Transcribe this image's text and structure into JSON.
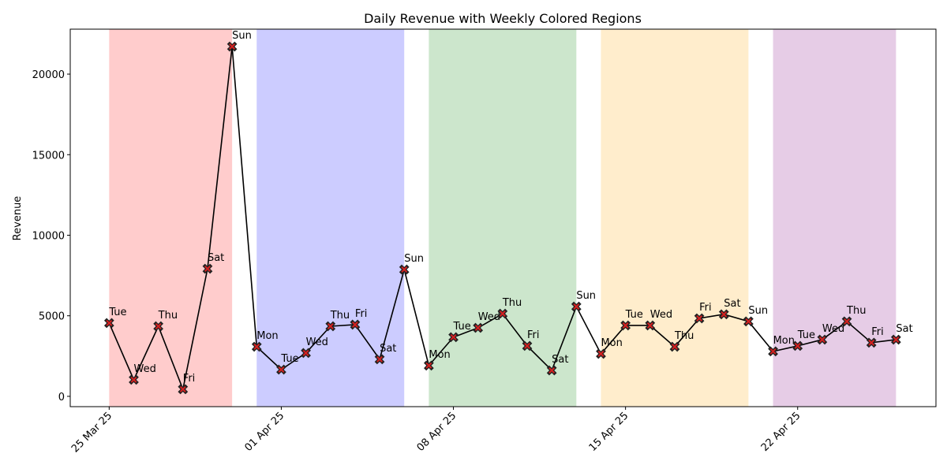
{
  "chart_data": {
    "type": "line",
    "title": "Daily Revenue with Weekly Colored Regions",
    "y_label": "Revenue",
    "x": [
      "2025-03-25",
      "2025-03-26",
      "2025-03-27",
      "2025-03-28",
      "2025-03-29",
      "2025-03-30",
      "2025-03-31",
      "2025-04-01",
      "2025-04-02",
      "2025-04-03",
      "2025-04-04",
      "2025-04-05",
      "2025-04-06",
      "2025-04-07",
      "2025-04-08",
      "2025-04-09",
      "2025-04-10",
      "2025-04-11",
      "2025-04-12",
      "2025-04-13",
      "2025-04-14",
      "2025-04-15",
      "2025-04-16",
      "2025-04-17",
      "2025-04-18",
      "2025-04-19",
      "2025-04-20",
      "2025-04-21",
      "2025-04-22",
      "2025-04-23",
      "2025-04-24",
      "2025-04-25",
      "2025-04-26"
    ],
    "series": [
      {
        "color": "#000000",
        "marker_color": "#d62020",
        "values": [
          4550,
          1030,
          4350,
          440,
          7920,
          21710,
          3080,
          1660,
          2690,
          4350,
          4450,
          2300,
          7870,
          1910,
          3670,
          4250,
          5130,
          3130,
          1610,
          5570,
          2640,
          4400,
          4400,
          3080,
          4840,
          5090,
          4650,
          2790,
          3130,
          3520,
          4650,
          3330,
          3520
        ],
        "value_labels": [
          "Tue",
          "Wed",
          "Thu",
          "Fri",
          "Sat",
          "Sun",
          "Mon",
          "Tue",
          "Wed",
          "Thu",
          "Fri",
          "Sat",
          "Sun",
          "Mon",
          "Tue",
          "Wed",
          "Thu",
          "Fri",
          "Sat",
          "Sun",
          "Mon",
          "Tue",
          "Wed",
          "Thu",
          "Fri",
          "Sat",
          "Sun",
          "Mon",
          "Tue",
          "Wed",
          "Thu",
          "Fri",
          "Sat"
        ]
      }
    ],
    "regions": [
      {
        "start": "2025-03-25",
        "end": "2025-03-30",
        "color": "#ff0000"
      },
      {
        "start": "2025-03-31",
        "end": "2025-04-06",
        "color": "#0000ff"
      },
      {
        "start": "2025-04-07",
        "end": "2025-04-13",
        "color": "#008000"
      },
      {
        "start": "2025-04-14",
        "end": "2025-04-20",
        "color": "#ffa500"
      },
      {
        "start": "2025-04-21",
        "end": "2025-04-26",
        "color": "#800080"
      }
    ],
    "xlim": [
      "2025-03-23T10:00Z",
      "2025-04-27T15:00Z"
    ],
    "xticks": [
      {
        "value": "2025-03-25",
        "label": "25 Mar 25"
      },
      {
        "value": "2025-04-01",
        "label": "01 Apr 25"
      },
      {
        "value": "2025-04-08",
        "label": "08 Apr 25"
      },
      {
        "value": "2025-04-15",
        "label": "15 Apr 25"
      },
      {
        "value": "2025-04-22",
        "label": "22 Apr 25"
      }
    ],
    "ylim": [
      -640,
      22790
    ],
    "yticks": [
      0,
      5000,
      10000,
      15000,
      20000
    ]
  }
}
